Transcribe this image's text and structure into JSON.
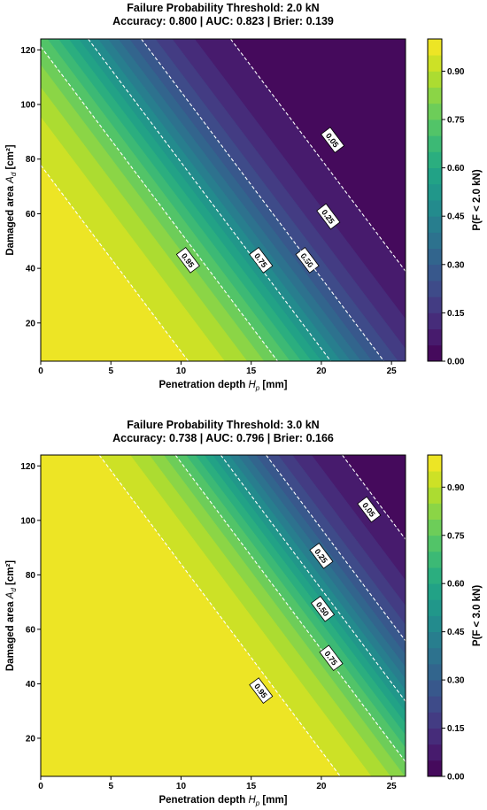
{
  "chart_data": [
    {
      "type": "heatmap",
      "subtype": "filled-contour",
      "title": "Failure Probability Threshold: 2.0 kN",
      "subtitle": "Accuracy: 0.800 | AUC: 0.823 | Brier: 0.139",
      "xlabel_main": "Penetration depth ",
      "xlabel_sym": "H",
      "xlabel_sub": "p",
      "xlabel_unit": " [mm]",
      "ylabel_main": "Damaged area ",
      "ylabel_sym": "A",
      "ylabel_sub": "d",
      "ylabel_unit": " [cm²]",
      "xlim": [
        0,
        26
      ],
      "ylim": [
        6,
        124
      ],
      "xticks": [
        "0",
        "5",
        "10",
        "15",
        "20",
        "25"
      ],
      "yticks": [
        "20",
        "40",
        "60",
        "80",
        "100",
        "120"
      ],
      "colorbar_label": "P(F < 2.0 kN)",
      "colorbar_ticks": [
        "0.00",
        "0.15",
        "0.30",
        "0.45",
        "0.60",
        "0.75",
        "0.90"
      ],
      "colorbar_range": [
        0,
        1
      ],
      "colormap": "viridis",
      "levels": 20,
      "grid": false,
      "model": {
        "type": "logistic",
        "intercept": 6.25,
        "coef_x": -0.29,
        "coef_y": -0.0425
      },
      "contours": [
        {
          "level": 0.95,
          "label": "0.95",
          "label_at": [
            10.5,
            43.0
          ]
        },
        {
          "level": 0.75,
          "label": "0.75",
          "label_at": [
            15.7,
            43.0
          ]
        },
        {
          "level": 0.5,
          "label": "0.50",
          "label_at": [
            19.0,
            43.0
          ]
        },
        {
          "level": 0.25,
          "label": "0.25",
          "label_at": [
            20.5,
            59.0
          ]
        },
        {
          "level": 0.05,
          "label": "0.05",
          "label_at": [
            20.8,
            87.0
          ]
        }
      ],
      "metrics": {
        "accuracy": 0.8,
        "auc": 0.823,
        "brier": 0.139
      }
    },
    {
      "type": "heatmap",
      "subtype": "filled-contour",
      "title": "Failure Probability Threshold: 3.0 kN",
      "subtitle": "Accuracy: 0.738 | AUC: 0.796 | Brier: 0.166",
      "xlabel_main": "Penetration depth ",
      "xlabel_sym": "H",
      "xlabel_sub": "p",
      "xlabel_unit": " [mm]",
      "ylabel_main": "Damaged area ",
      "ylabel_sym": "A",
      "ylabel_sub": "d",
      "ylabel_unit": " [cm²]",
      "xlim": [
        0,
        26
      ],
      "ylim": [
        6,
        124
      ],
      "xticks": [
        "0",
        "5",
        "10",
        "15",
        "20",
        "25"
      ],
      "yticks": [
        "20",
        "40",
        "60",
        "80",
        "100",
        "120"
      ],
      "colorbar_label": "P(F < 3.0 kN)",
      "colorbar_ticks": [
        "0.00",
        "0.15",
        "0.30",
        "0.45",
        "0.60",
        "0.75",
        "0.90"
      ],
      "colorbar_range": [
        0,
        1
      ],
      "colormap": "viridis",
      "levels": 20,
      "grid": false,
      "model": {
        "type": "logistic",
        "intercept": 10.5,
        "coef_x": -0.34,
        "coef_y": -0.0495
      },
      "contours": [
        {
          "level": 0.95,
          "label": "0.95",
          "label_at": [
            15.7,
            37.5
          ]
        },
        {
          "level": 0.75,
          "label": "0.75",
          "label_at": [
            20.7,
            49.5
          ]
        },
        {
          "level": 0.5,
          "label": "0.50",
          "label_at": [
            20.1,
            67.5
          ]
        },
        {
          "level": 0.25,
          "label": "0.25",
          "label_at": [
            20.0,
            87.0
          ]
        },
        {
          "level": 0.05,
          "label": "0.05",
          "label_at": [
            23.4,
            104.0
          ]
        }
      ],
      "metrics": {
        "accuracy": 0.738,
        "auc": 0.796,
        "brier": 0.166
      }
    }
  ]
}
